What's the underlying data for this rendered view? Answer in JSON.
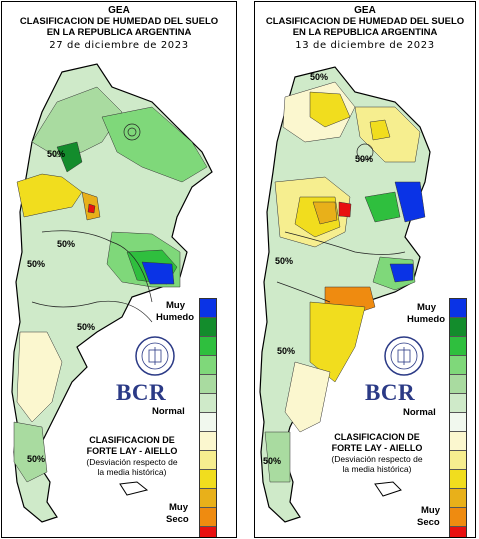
{
  "colors": {
    "muy_humedo": "#0a33e6",
    "humedo_3": "#138c2c",
    "humedo_2": "#2fbf3e",
    "humedo_1": "#7fd87a",
    "leve_humedo": "#a9dba0",
    "normal_humedo": "#cfeac9",
    "normal": "#f1f8ee",
    "normal_seco": "#fbf7cf",
    "leve_seco": "#f6ee8f",
    "seco_1": "#f1dd1e",
    "seco_2": "#e8b01a",
    "seco_3": "#ef8b10",
    "muy_seco": "#e81010",
    "outline": "#000000"
  },
  "left_map": {
    "gea": "GEA",
    "title_line1": "CLASIFICACION DE HUMEDAD DEL SUELO",
    "title_line2": "EN LA REPUBLICA ARGENTINA",
    "date": "27  de  diciembre  de  2023",
    "contour_labels": [
      "50%",
      "50%",
      "50%",
      "50%",
      "50%"
    ]
  },
  "right_map": {
    "gea": "GEA",
    "title_line1": "CLASIFICACION DE HUMEDAD DEL SUELO",
    "title_line2": "EN LA REPUBLICA ARGENTINA",
    "date": "13  de  diciembre  de  2023",
    "contour_labels": [
      "50%",
      "50%",
      "50%",
      "50%",
      "50%"
    ]
  },
  "legend": {
    "top_label_1": "Muy",
    "top_label_2": "Humedo",
    "mid_label": "Normal",
    "bottom_label_1": "Muy",
    "bottom_label_2": "Seco",
    "credit_line1": "CLASIFICACION DE",
    "credit_line2": "FORTE LAY - AIELLO",
    "credit_line3": "(Desviación respecto de",
    "credit_line4": "la media histórica)",
    "logo_text": "BCR",
    "seal_text": "BOLSA DE COMERCIO DE ROSARIO"
  }
}
